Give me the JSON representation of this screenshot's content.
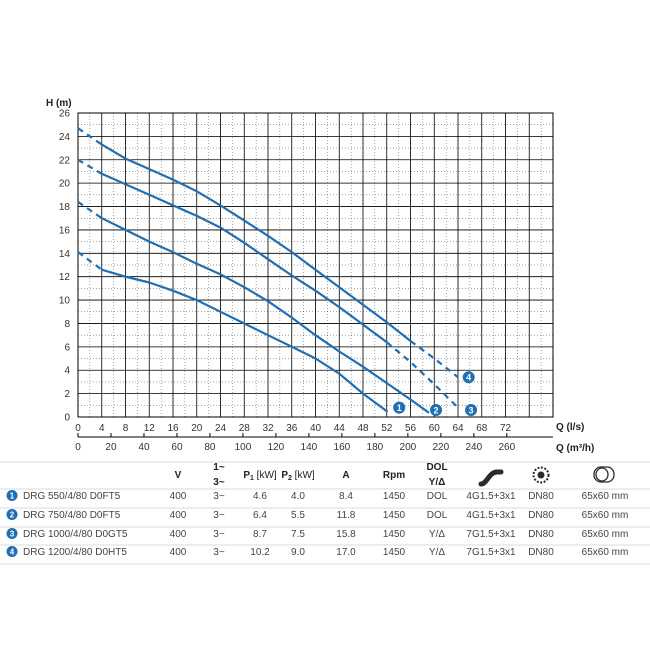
{
  "chart_data": {
    "type": "line",
    "ylabel": "H (m)",
    "xlabel": "Q (l/s)",
    "x2label": "Q (m³/h)",
    "xlim": [
      0,
      80
    ],
    "ylim": [
      0,
      26
    ],
    "x_ticks": [
      "0",
      "4",
      "8",
      "12",
      "16",
      "20",
      "24",
      "28",
      "32",
      "36",
      "40",
      "44",
      "48",
      "52",
      "56",
      "60",
      "64",
      "68",
      "72"
    ],
    "y_ticks": [
      "0",
      "2",
      "4",
      "6",
      "8",
      "10",
      "12",
      "14",
      "16",
      "18",
      "20",
      "22",
      "24",
      "26"
    ],
    "x2_ticks": [
      "0",
      "20",
      "40",
      "60",
      "80",
      "100",
      "120",
      "140",
      "160",
      "180",
      "200",
      "220",
      "240",
      "260"
    ],
    "grid": true,
    "series": [
      {
        "name": "1",
        "color": "#1f6fb2",
        "dashed": [
          [
            0,
            14.1
          ],
          [
            4,
            12.6
          ]
        ],
        "solid": [
          [
            4,
            12.6
          ],
          [
            8,
            12.0
          ],
          [
            12,
            11.5
          ],
          [
            16,
            10.8
          ],
          [
            20,
            10.0
          ],
          [
            24,
            9.0
          ],
          [
            28,
            8.0
          ],
          [
            32,
            7.0
          ],
          [
            36,
            6.0
          ],
          [
            40,
            5.0
          ],
          [
            44,
            3.7
          ],
          [
            48,
            2.0
          ],
          [
            52,
            0.5
          ]
        ]
      },
      {
        "name": "2",
        "color": "#1f6fb2",
        "dashed": [
          [
            0,
            18.4
          ],
          [
            4,
            17.0
          ]
        ],
        "solid": [
          [
            4,
            17.0
          ],
          [
            8,
            16.0
          ],
          [
            12,
            15.0
          ],
          [
            16,
            14.1
          ],
          [
            20,
            13.1
          ],
          [
            24,
            12.2
          ],
          [
            28,
            11.1
          ],
          [
            32,
            9.9
          ],
          [
            36,
            8.5
          ],
          [
            40,
            7.0
          ],
          [
            44,
            5.6
          ],
          [
            48,
            4.3
          ],
          [
            52,
            2.9
          ],
          [
            56,
            1.5
          ],
          [
            59,
            0.4
          ]
        ]
      },
      {
        "name": "3",
        "color": "#1f6fb2",
        "dashed": [
          [
            0,
            22.0
          ],
          [
            4,
            20.8
          ],
          [
            52,
            6.4
          ],
          [
            56,
            4.7
          ],
          [
            60,
            2.8
          ],
          [
            64,
            0.8
          ]
        ],
        "solid": [
          [
            4,
            20.8
          ],
          [
            8,
            19.9
          ],
          [
            12,
            19.0
          ],
          [
            16,
            18.1
          ],
          [
            20,
            17.2
          ],
          [
            24,
            16.2
          ],
          [
            28,
            14.9
          ],
          [
            32,
            13.5
          ],
          [
            36,
            12.1
          ],
          [
            40,
            10.8
          ],
          [
            44,
            9.4
          ],
          [
            48,
            7.9
          ],
          [
            52,
            6.4
          ]
        ]
      },
      {
        "name": "4",
        "color": "#1f6fb2",
        "dashed": [
          [
            0,
            24.7
          ],
          [
            4,
            23.3
          ],
          [
            56,
            6.5
          ],
          [
            60,
            5.0
          ],
          [
            64,
            3.4
          ]
        ],
        "solid": [
          [
            4,
            23.3
          ],
          [
            8,
            22.1
          ],
          [
            12,
            21.2
          ],
          [
            16,
            20.3
          ],
          [
            20,
            19.3
          ],
          [
            24,
            18.1
          ],
          [
            28,
            16.8
          ],
          [
            32,
            15.5
          ],
          [
            36,
            14.1
          ],
          [
            40,
            12.6
          ],
          [
            44,
            11.1
          ],
          [
            48,
            9.6
          ],
          [
            52,
            8.1
          ],
          [
            56,
            6.5
          ]
        ]
      }
    ]
  },
  "table": {
    "headers": {
      "v": "V",
      "phase_top": "1~",
      "phase_bottom": "3~",
      "p1": "P",
      "p1_sub": "1",
      "p1_unit": " [kW]",
      "p2": "P",
      "p2_sub": "2",
      "p2_unit": " [kW]",
      "a": "A",
      "rpm": "Rpm",
      "dol": "DOL",
      "start": "Y/Δ",
      "cable_icon": "cable-icon",
      "flange_icon": "flange-icon",
      "impeller_icon": "impeller-passage-icon"
    },
    "rows": [
      {
        "num": "1",
        "model": "DRG 550/4/80 D0FT5",
        "v": "400",
        "phase": "3~",
        "p1": "4.6",
        "p2": "4.0",
        "a": "8.4",
        "rpm": "1450",
        "start": "DOL",
        "cable": "4G1.5+3x1",
        "dn": "DN80",
        "passage": "65x60 mm"
      },
      {
        "num": "2",
        "model": "DRG 750/4/80 D0FT5",
        "v": "400",
        "phase": "3~",
        "p1": "6.4",
        "p2": "5.5",
        "a": "11.8",
        "rpm": "1450",
        "start": "DOL",
        "cable": "4G1.5+3x1",
        "dn": "DN80",
        "passage": "65x60 mm"
      },
      {
        "num": "3",
        "model": "DRG 1000/4/80 D0GT5",
        "v": "400",
        "phase": "3~",
        "p1": "8.7",
        "p2": "7.5",
        "a": "15.8",
        "rpm": "1450",
        "start": "Y/Δ",
        "cable": "7G1.5+3x1",
        "dn": "DN80",
        "passage": "65x60 mm"
      },
      {
        "num": "4",
        "model": "DRG 1200/4/80 D0HT5",
        "v": "400",
        "phase": "3~",
        "p1": "10.2",
        "p2": "9.0",
        "a": "17.0",
        "rpm": "1450",
        "start": "Y/Δ",
        "cable": "7G1.5+3x1",
        "dn": "DN80",
        "passage": "65x60 mm"
      }
    ]
  }
}
